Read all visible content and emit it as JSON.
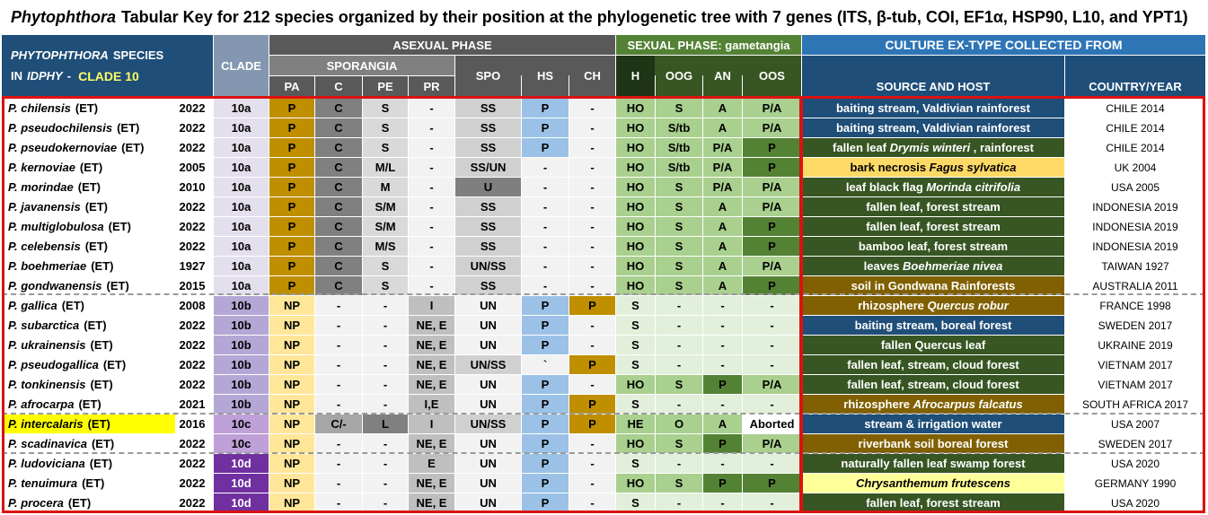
{
  "title": {
    "genus": "Phytophthora",
    "rest": "Tabular Key for 212 species organized by their position at the phylogenetic tree with 7 genes (ITS, β-tub, COI, EF1α, HSP90, L10, and YPT1)"
  },
  "header": {
    "species_l1a": "PHYTOPHTHORA",
    "species_l1b": "SPECIES",
    "species_l2a": "IN",
    "species_l2b": "IDPHY",
    "species_l2c": "-",
    "species_l2d": "CLADE 10",
    "clade": "CLADE",
    "asexual": "ASEXUAL PHASE",
    "sporangia": "SPORANGIA",
    "sexual": "SEXUAL PHASE: gametangia",
    "culture": "CULTURE EX-TYPE COLLECTED FROM",
    "cols": {
      "pa": "PA",
      "c": "C",
      "pe": "PE",
      "pr": "PR",
      "spo": "SPO",
      "hs": "HS",
      "ch": "CH",
      "h": "H",
      "oog": "OOG",
      "an": "AN",
      "oos": "OOS",
      "source": "SOURCE AND HOST",
      "country": "COUNTRY/YEAR"
    }
  },
  "colors": {
    "ochre": "#bf8f00",
    "sage": "#e2efda",
    "midgreen": "#a9d08e",
    "darkgreen": "#548235",
    "navy": "#1f4e78",
    "olive": "#375623",
    "brown": "#806000",
    "lightyellow": "#ffff99",
    "gold": "#ffd966",
    "blue": "#9bc2e6",
    "clade10a": "#e4dfec",
    "clade10b": "#b4a7d6",
    "clade10c": "#c0a0d8",
    "clade10d": "#7030a0"
  },
  "rows": [
    {
      "name": "P. chilensis",
      "suffix": "(ET)",
      "year": "2022",
      "clade": "10a",
      "pa": "P",
      "c": "C",
      "pe": "S",
      "pr": "-",
      "spo": "SS",
      "hs": "P",
      "ch": "-",
      "h": "HO",
      "oog": "S",
      "an": "A",
      "oos": "P/A",
      "source": [
        {
          "t": "baiting stream, Valdivian rainforest",
          "i": false
        }
      ],
      "country": "CHILE 2014",
      "src_style": "navy"
    },
    {
      "name": "P. pseudochilensis",
      "suffix": "(ET)",
      "year": "2022",
      "clade": "10a",
      "pa": "P",
      "c": "C",
      "pe": "S",
      "pr": "-",
      "spo": "SS",
      "hs": "P",
      "ch": "-",
      "h": "HO",
      "oog": "S/tb",
      "an": "A",
      "oos": "P/A",
      "source": [
        {
          "t": "baiting stream, Valdivian rainforest",
          "i": false
        }
      ],
      "country": "CHILE 2014",
      "src_style": "navy"
    },
    {
      "name": "P. pseudokernoviae",
      "suffix": "(ET)",
      "year": "2022",
      "clade": "10a",
      "pa": "P",
      "c": "C",
      "pe": "S",
      "pr": "-",
      "spo": "SS",
      "hs": "P",
      "ch": "-",
      "h": "HO",
      "oog": "S/tb",
      "an": "P/A",
      "oos": "P",
      "source": [
        {
          "t": "fallen leaf ",
          "i": false
        },
        {
          "t": "Drymis winteri",
          "i": true
        },
        {
          "t": " , rainforest",
          "i": false
        }
      ],
      "country": "CHILE 2014",
      "src_style": "olive"
    },
    {
      "name": "P. kernoviae",
      "suffix": "(ET)",
      "year": "2005",
      "clade": "10a",
      "pa": "P",
      "c": "C",
      "pe": "M/L",
      "pr": "-",
      "spo": "SS/UN",
      "hs": "-",
      "ch": "-",
      "h": "HO",
      "oog": "S/tb",
      "an": "P/A",
      "oos": "P",
      "source": [
        {
          "t": "bark necrosis ",
          "i": false
        },
        {
          "t": "Fagus sylvatica",
          "i": true
        }
      ],
      "country": "UK 2004",
      "src_style": "gold"
    },
    {
      "name": "P. morindae",
      "suffix": "(ET)",
      "year": "2010",
      "clade": "10a",
      "pa": "P",
      "c": "C",
      "pe": "M",
      "pr": "-",
      "spo": "U",
      "hs": "-",
      "ch": "-",
      "h": "HO",
      "oog": "S",
      "an": "P/A",
      "oos": "P/A",
      "source": [
        {
          "t": "leaf black flag ",
          "i": false
        },
        {
          "t": "Morinda citrifolia",
          "i": true
        }
      ],
      "country": "USA 2005",
      "src_style": "olive"
    },
    {
      "name": "P. javanensis",
      "suffix": "(ET)",
      "year": "2022",
      "clade": "10a",
      "pa": "P",
      "c": "C",
      "pe": "S/M",
      "pr": "-",
      "spo": "SS",
      "hs": "-",
      "ch": "-",
      "h": "HO",
      "oog": "S",
      "an": "A",
      "oos": "P/A",
      "source": [
        {
          "t": "fallen leaf, forest stream",
          "i": false
        }
      ],
      "country": "INDONESIA 2019",
      "src_style": "olive"
    },
    {
      "name": "P. multiglobulosa",
      "suffix": "(ET)",
      "year": "2022",
      "clade": "10a",
      "pa": "P",
      "c": "C",
      "pe": "S/M",
      "pr": "-",
      "spo": "SS",
      "hs": "-",
      "ch": "-",
      "h": "HO",
      "oog": "S",
      "an": "A",
      "oos": "P",
      "source": [
        {
          "t": "fallen leaf, forest stream",
          "i": false
        }
      ],
      "country": "INDONESIA 2019",
      "src_style": "olive"
    },
    {
      "name": "P. celebensis",
      "suffix": "(ET)",
      "year": "2022",
      "clade": "10a",
      "pa": "P",
      "c": "C",
      "pe": "M/S",
      "pr": "-",
      "spo": "SS",
      "hs": "-",
      "ch": "-",
      "h": "HO",
      "oog": "S",
      "an": "A",
      "oos": "P",
      "source": [
        {
          "t": "bamboo leaf, forest stream",
          "i": false
        }
      ],
      "country": "INDONESIA 2019",
      "src_style": "olive"
    },
    {
      "name": "P. boehmeriae",
      "suffix": "(ET)",
      "year": "1927",
      "clade": "10a",
      "pa": "P",
      "c": "C",
      "pe": "S",
      "pr": "-",
      "spo": "UN/SS",
      "hs": "-",
      "ch": "-",
      "h": "HO",
      "oog": "S",
      "an": "A",
      "oos": "P/A",
      "source": [
        {
          "t": "leaves ",
          "i": false
        },
        {
          "t": "Boehmeriae nivea",
          "i": true
        }
      ],
      "country": "TAIWAN 1927",
      "src_style": "olive"
    },
    {
      "name": "P. gondwanensis",
      "suffix": "(ET)",
      "year": "2015",
      "clade": "10a",
      "pa": "P",
      "c": "C",
      "pe": "S",
      "pr": "-",
      "spo": "SS",
      "hs": "-",
      "ch": "-",
      "h": "HO",
      "oog": "S",
      "an": "A",
      "oos": "P",
      "source": [
        {
          "t": "soil in Gondwana Rainforests",
          "i": false
        }
      ],
      "country": "AUSTRALIA 2011",
      "src_style": "brown"
    },
    {
      "name": "P. gallica",
      "suffix": "(ET)",
      "year": "2008",
      "clade": "10b",
      "pa": "NP",
      "c": "-",
      "pe": "-",
      "pr": "I",
      "spo": "UN",
      "hs": "P",
      "ch": "P",
      "h": "S",
      "oog": "-",
      "an": "-",
      "oos": "-",
      "source": [
        {
          "t": "rhizosphere ",
          "i": false
        },
        {
          "t": "Quercus robur",
          "i": true
        }
      ],
      "country": "FRANCE 1998",
      "src_style": "brown"
    },
    {
      "name": "P. subarctica",
      "suffix": "(ET)",
      "year": "2022",
      "clade": "10b",
      "pa": "NP",
      "c": "-",
      "pe": "-",
      "pr": "NE, E",
      "spo": "UN",
      "hs": "P",
      "ch": "-",
      "h": "S",
      "oog": "-",
      "an": "-",
      "oos": "-",
      "source": [
        {
          "t": "baiting stream, boreal forest",
          "i": false
        }
      ],
      "country": "SWEDEN 2017",
      "src_style": "navy"
    },
    {
      "name": "P. ukrainensis",
      "suffix": "(ET)",
      "year": "2022",
      "clade": "10b",
      "pa": "NP",
      "c": "-",
      "pe": "-",
      "pr": "NE, E",
      "spo": "UN",
      "hs": "P",
      "ch": "-",
      "h": "S",
      "oog": "-",
      "an": "-",
      "oos": "-",
      "source": [
        {
          "t": "fallen Quercus leaf",
          "i": false
        }
      ],
      "country": "UKRAINE 2019",
      "src_style": "olive"
    },
    {
      "name": "P. pseudogallica",
      "suffix": "(ET)",
      "year": "2022",
      "clade": "10b",
      "pa": "NP",
      "c": "-",
      "pe": "-",
      "pr": "NE, E",
      "spo": "UN/SS",
      "hs": "`",
      "ch": "P",
      "h": "S",
      "oog": "-",
      "an": "-",
      "oos": "-",
      "source": [
        {
          "t": "fallen leaf, stream, cloud forest",
          "i": false
        }
      ],
      "country": "VIETNAM 2017",
      "src_style": "olive"
    },
    {
      "name": "P. tonkinensis",
      "suffix": "(ET)",
      "year": "2022",
      "clade": "10b",
      "pa": "NP",
      "c": "-",
      "pe": "-",
      "pr": "NE, E",
      "spo": "UN",
      "hs": "P",
      "ch": "-",
      "h": "HO",
      "oog": "S",
      "an": "P",
      "oos": "P/A",
      "source": [
        {
          "t": "fallen leaf, stream, cloud forest",
          "i": false
        }
      ],
      "country": "VIETNAM 2017",
      "src_style": "olive"
    },
    {
      "name": "P. afrocarpa",
      "suffix": "(ET)",
      "year": "2021",
      "clade": "10b",
      "pa": "NP",
      "c": "-",
      "pe": "-",
      "pr": "I,E",
      "spo": "UN",
      "hs": "P",
      "ch": "P",
      "h": "S",
      "oog": "-",
      "an": "-",
      "oos": "-",
      "source": [
        {
          "t": "rhizosphere ",
          "i": false
        },
        {
          "t": "Afrocarpus falcatus",
          "i": true
        }
      ],
      "country": "SOUTH AFRICA 2017",
      "src_style": "brown"
    },
    {
      "name": "P. intercalaris",
      "suffix": "(ET)",
      "year": "2016",
      "clade": "10c",
      "pa": "NP",
      "c": "C/-",
      "pe": "L",
      "pr": "I",
      "spo": "UN/SS",
      "hs": "P",
      "ch": "P",
      "h": "HE",
      "oog": "O",
      "an": "A",
      "oos": "Aborted",
      "source": [
        {
          "t": "stream & irrigation water",
          "i": false
        }
      ],
      "country": "USA 2007",
      "src_style": "navy",
      "highlight": true
    },
    {
      "name": "P. scadinavica",
      "suffix": "(ET)",
      "year": "2022",
      "clade": "10c",
      "pa": "NP",
      "c": "-",
      "pe": "-",
      "pr": "NE, E",
      "spo": "UN",
      "hs": "P",
      "ch": "-",
      "h": "HO",
      "oog": "S",
      "an": "P",
      "oos": "P/A",
      "source": [
        {
          "t": "riverbank soil boreal forest",
          "i": false
        }
      ],
      "country": "SWEDEN 2017",
      "src_style": "brown"
    },
    {
      "name": "P. ludoviciana",
      "suffix": "(ET)",
      "year": "2022",
      "clade": "10d",
      "pa": "NP",
      "c": "-",
      "pe": "-",
      "pr": "E",
      "spo": "UN",
      "hs": "P",
      "ch": "-",
      "h": "S",
      "oog": "-",
      "an": "-",
      "oos": "-",
      "source": [
        {
          "t": "naturally fallen leaf swamp forest",
          "i": false
        }
      ],
      "country": "USA 2020",
      "src_style": "olive"
    },
    {
      "name": "P. tenuimura",
      "suffix": "(ET)",
      "year": "2022",
      "clade": "10d",
      "pa": "NP",
      "c": "-",
      "pe": "-",
      "pr": "NE, E",
      "spo": "UN",
      "hs": "P",
      "ch": "-",
      "h": "HO",
      "oog": "S",
      "an": "P",
      "oos": "P",
      "source": [
        {
          "t": "Chrysanthemum frutescens",
          "i": true
        }
      ],
      "country": "GERMANY 1990",
      "src_style": "lightyellow"
    },
    {
      "name": "P. procera",
      "suffix": "(ET)",
      "year": "2022",
      "clade": "10d",
      "pa": "NP",
      "c": "-",
      "pe": "-",
      "pr": "NE, E",
      "spo": "UN",
      "hs": "P",
      "ch": "-",
      "h": "S",
      "oog": "-",
      "an": "-",
      "oos": "-",
      "source": [
        {
          "t": "fallen leaf, forest stream",
          "i": false
        }
      ],
      "country": "USA 2020",
      "src_style": "olive"
    }
  ]
}
